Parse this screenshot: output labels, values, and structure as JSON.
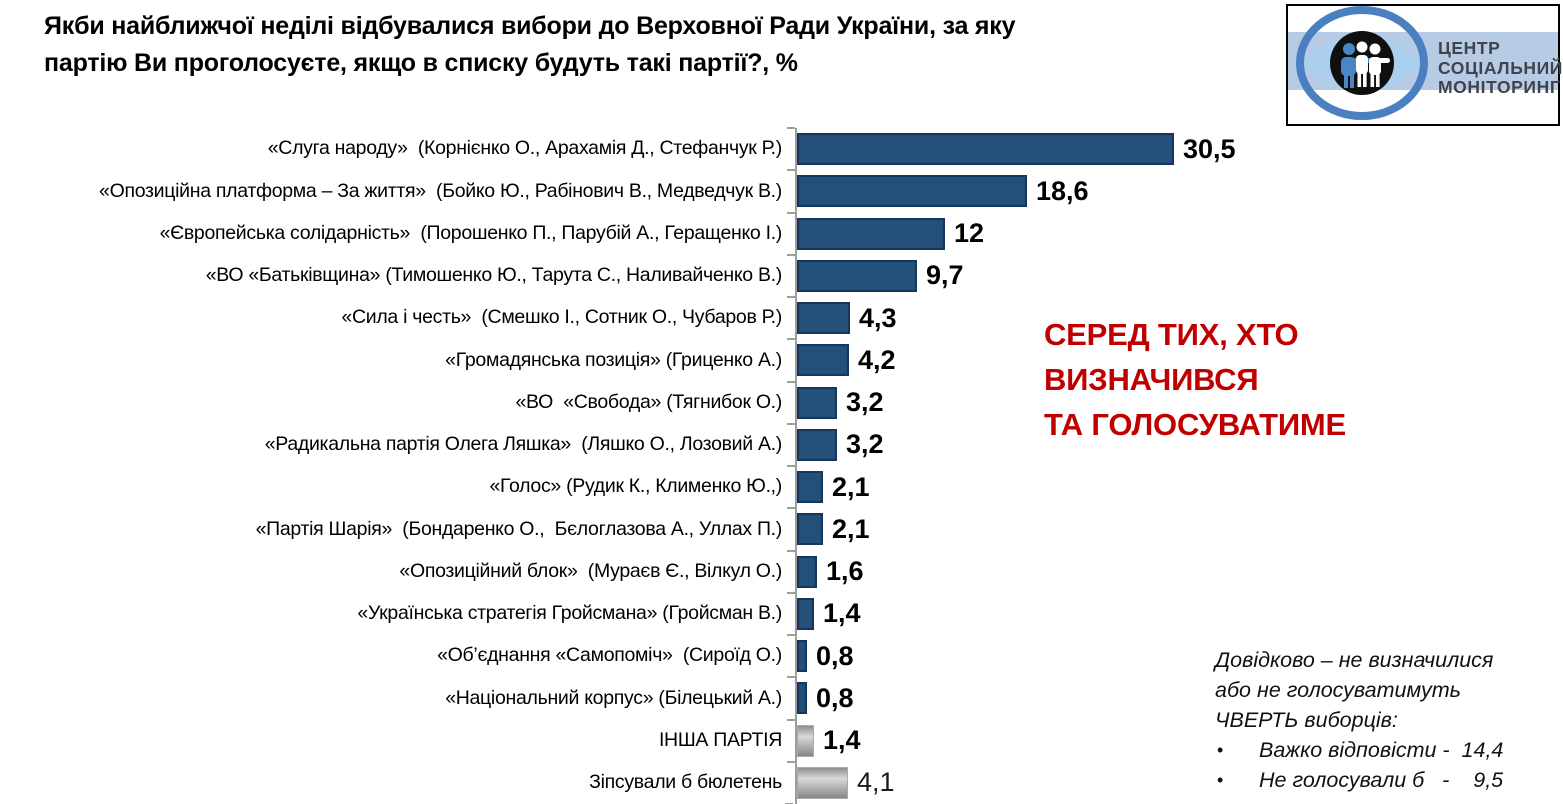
{
  "header": {
    "title_lines": [
      "Якби найближчої неділі відбувалися вибори до Верховної Ради України, за яку",
      "партію Ви проголосуєте, якщо в списку будуть такі партії?, %"
    ]
  },
  "logo": {
    "lines": [
      "ЦЕНТР",
      "СОЦІАЛЬНИЙ",
      "МОНІТОРИНГ"
    ],
    "icon": "eye-people-icon",
    "colors": {
      "ring": "#4a80c0",
      "band": "#b7cce4",
      "lens": "#abcfec",
      "circle": "#0f0f0f",
      "person_blue": "#4a86c5",
      "text": "#3e434d"
    }
  },
  "annotation": {
    "lines": [
      "СЕРЕД ТИХ, ХТО",
      "ВИЗНАЧИВСЯ",
      "ТА ГОЛОСУВАТИМЕ"
    ],
    "color": "#c00000"
  },
  "note": {
    "lines": [
      "Довідково – не визначилися",
      "або не голосуватимуть",
      "ЧВЕРТЬ виборців:"
    ],
    "bullet_symbol": "•",
    "bullets": [
      "Важко відповісти -  14,4",
      "Не голосували б   -    9,5"
    ]
  },
  "chart_data": {
    "type": "bar",
    "orientation": "horizontal",
    "title": "Якби найближчої неділі відбувалися вибори до Верховної Ради України, за яку партію Ви проголосуєте, якщо в списку будуть такі партії?, %",
    "unit": "%",
    "xlim": [
      0,
      33
    ],
    "grid": false,
    "legend": "none",
    "categories": [
      "«Слуга народу»  (Корнієнко О., Арахамія Д., Стефанчук Р.)",
      "«Опозиційна платформа – За життя»  (Бойко Ю., Рабінович В., Медведчук В.)",
      "«Європейська солідарність»  (Порошенко П., Парубій А., Геращенко І.)",
      "«ВО «Батьківщина» (Тимошенко Ю., Тарута С., Наливайченко В.)",
      "«Сила і честь»  (Смешко І., Сотник О., Чубаров Р.)",
      "«Громадянська позиція» (Гриценко А.)",
      "«ВО  «Свобода» (Тягнибок О.)",
      "«Радикальна партія Олега Ляшка»  (Ляшко О., Лозовий А.)",
      "«Голос» (Рудик К., Клименко Ю.,)",
      "«Партія Шарія»  (Бондаренко О.,  Бєлоглазова А., Уллах П.)",
      "«Опозиційний блок»  (Мураєв Є., Вілкул О.)",
      "«Українська стратегія Гройсмана» (Гройсман В.)",
      "«Об’єднання «Самопоміч»  (Сироїд О.)",
      "«Національний корпус» (Білецький А.)",
      "ІНША ПАРТІЯ",
      "Зіпсували б бюлетень"
    ],
    "values": [
      30.5,
      18.6,
      12,
      9.7,
      4.3,
      4.2,
      3.2,
      3.2,
      2.1,
      2.1,
      1.6,
      1.4,
      0.8,
      0.8,
      1.4,
      4.1
    ],
    "rows": [
      {
        "label": "«Слуга народу»  (Корнієнко О., Арахамія Д., Стефанчук Р.)",
        "value": 30.5,
        "display": "30,5",
        "style": "blue",
        "bold_value": true
      },
      {
        "label": "«Опозиційна платформа – За життя»  (Бойко Ю., Рабінович В., Медведчук В.)",
        "value": 18.6,
        "display": "18,6",
        "style": "blue",
        "bold_value": true
      },
      {
        "label": "«Європейська солідарність»  (Порошенко П., Парубій А., Геращенко І.)",
        "value": 12,
        "display": "12",
        "style": "blue",
        "bold_value": true
      },
      {
        "label": "«ВО «Батьківщина» (Тимошенко Ю., Тарута С., Наливайченко В.)",
        "value": 9.7,
        "display": "9,7",
        "style": "blue",
        "bold_value": true
      },
      {
        "label": "«Сила і честь»  (Смешко І., Сотник О., Чубаров Р.)",
        "value": 4.3,
        "display": "4,3",
        "style": "blue",
        "bold_value": true
      },
      {
        "label": "«Громадянська позиція» (Гриценко А.)",
        "value": 4.2,
        "display": "4,2",
        "style": "blue",
        "bold_value": true
      },
      {
        "label": "«ВО  «Свобода» (Тягнибок О.)",
        "value": 3.2,
        "display": "3,2",
        "style": "blue",
        "bold_value": true
      },
      {
        "label": "«Радикальна партія Олега Ляшка»  (Ляшко О., Лозовий А.)",
        "value": 3.2,
        "display": "3,2",
        "style": "blue",
        "bold_value": true
      },
      {
        "label": "«Голос» (Рудик К., Клименко Ю.,)",
        "value": 2.1,
        "display": "2,1",
        "style": "blue",
        "bold_value": true
      },
      {
        "label": "«Партія Шарія»  (Бондаренко О.,  Бєлоглазова А., Уллах П.)",
        "value": 2.1,
        "display": "2,1",
        "style": "blue",
        "bold_value": true
      },
      {
        "label": "«Опозиційний блок»  (Мураєв Є., Вілкул О.)",
        "value": 1.6,
        "display": "1,6",
        "style": "blue",
        "bold_value": true
      },
      {
        "label": "«Українська стратегія Гройсмана» (Гройсман В.)",
        "value": 1.4,
        "display": "1,4",
        "style": "blue",
        "bold_value": true
      },
      {
        "label": "«Об’єднання «Самопоміч»  (Сироїд О.)",
        "value": 0.8,
        "display": "0,8",
        "style": "blue",
        "bold_value": true
      },
      {
        "label": "«Національний корпус» (Білецький А.)",
        "value": 0.8,
        "display": "0,8",
        "style": "blue",
        "bold_value": true
      },
      {
        "label": "ІНША ПАРТІЯ",
        "value": 1.4,
        "display": "1,4",
        "style": "gray",
        "bold_value": true
      },
      {
        "label": "Зіпсували б бюлетень",
        "value": 4.1,
        "display": "4,1",
        "style": "gray",
        "bold_value": false
      }
    ],
    "colors": {
      "bar_fill": "#235079",
      "bar_border": "#16365c",
      "other_bar": "gray-gradient",
      "axis": "#9d9d9d"
    }
  }
}
